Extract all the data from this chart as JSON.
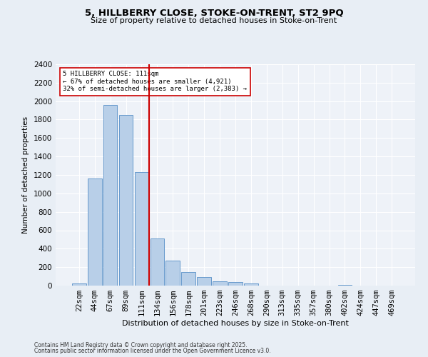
{
  "title1": "5, HILLBERRY CLOSE, STOKE-ON-TRENT, ST2 9PQ",
  "title2": "Size of property relative to detached houses in Stoke-on-Trent",
  "xlabel": "Distribution of detached houses by size in Stoke-on-Trent",
  "ylabel": "Number of detached properties",
  "categories": [
    "22sqm",
    "44sqm",
    "67sqm",
    "89sqm",
    "111sqm",
    "134sqm",
    "156sqm",
    "178sqm",
    "201sqm",
    "223sqm",
    "246sqm",
    "268sqm",
    "290sqm",
    "313sqm",
    "335sqm",
    "357sqm",
    "380sqm",
    "402sqm",
    "424sqm",
    "447sqm",
    "469sqm"
  ],
  "values": [
    25,
    1160,
    1960,
    1850,
    1230,
    510,
    270,
    150,
    90,
    45,
    40,
    20,
    0,
    0,
    0,
    0,
    0,
    10,
    0,
    0,
    0
  ],
  "bar_color": "#b8cfe8",
  "bar_edgecolor": "#6699cc",
  "vline_x_index": 4,
  "vline_color": "#cc0000",
  "annotation_text": "5 HILLBERRY CLOSE: 111sqm\n← 67% of detached houses are smaller (4,921)\n32% of semi-detached houses are larger (2,383) →",
  "annotation_box_facecolor": "white",
  "annotation_box_edgecolor": "#cc0000",
  "ylim": [
    0,
    2400
  ],
  "yticks": [
    0,
    200,
    400,
    600,
    800,
    1000,
    1200,
    1400,
    1600,
    1800,
    2000,
    2200,
    2400
  ],
  "bg_color": "#e8eef5",
  "plot_bg_color": "#eef2f8",
  "grid_color": "#ffffff",
  "footer1": "Contains HM Land Registry data © Crown copyright and database right 2025.",
  "footer2": "Contains public sector information licensed under the Open Government Licence v3.0."
}
